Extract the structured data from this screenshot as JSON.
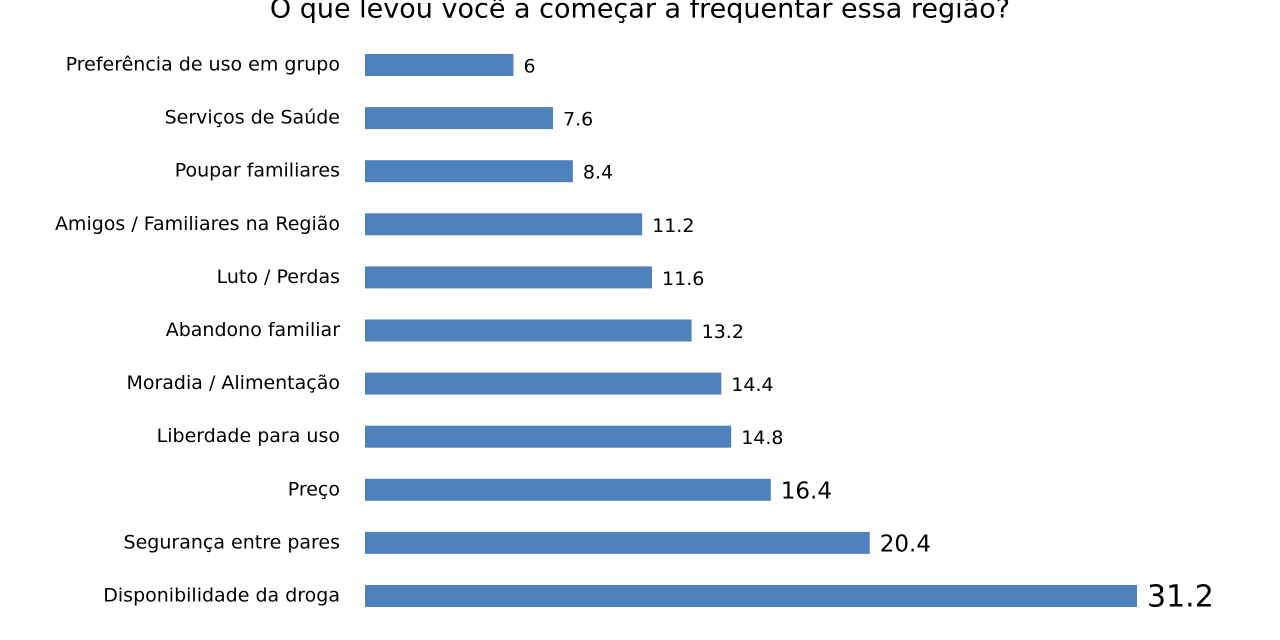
{
  "chart_data": {
    "type": "bar",
    "orientation": "horizontal",
    "title": "O que levou você a começar a frequentar essa região?",
    "categories": [
      "Preferência de uso em grupo",
      "Serviços de Saúde",
      "Poupar familiares",
      "Amigos / Familiares na Região",
      "Luto / Perdas",
      "Abandono familiar",
      "Moradia / Alimentação",
      "Liberdade para uso",
      "Preço",
      "Segurança entre pares",
      "Disponibilidade da droga"
    ],
    "values": [
      6,
      7.6,
      8.4,
      11.2,
      11.6,
      13.2,
      14.4,
      14.8,
      16.4,
      20.4,
      31.2
    ],
    "color": "#4f81bd"
  }
}
